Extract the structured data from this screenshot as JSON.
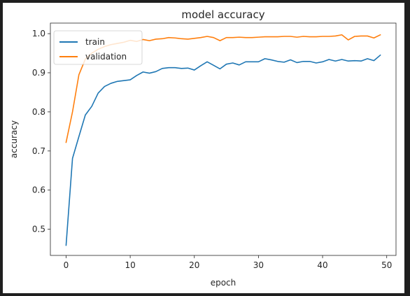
{
  "chart_data": {
    "type": "line",
    "title": "model accuracy",
    "xlabel": "epoch",
    "ylabel": "accuracy",
    "xlim": [
      -2.45,
      51.45
    ],
    "ylim": [
      0.433,
      1.027
    ],
    "xticks": [
      0,
      10,
      20,
      30,
      40,
      50
    ],
    "yticks": [
      0.5,
      0.6,
      0.7,
      0.8,
      0.9,
      1.0
    ],
    "ytick_labels": [
      "0.5",
      "0.6",
      "0.7",
      "0.8",
      "0.9",
      "1.0"
    ],
    "grid": false,
    "legend_position": "top-left",
    "x": [
      0,
      1,
      2,
      3,
      4,
      5,
      6,
      7,
      8,
      9,
      10,
      11,
      12,
      13,
      14,
      15,
      16,
      17,
      18,
      19,
      20,
      21,
      22,
      23,
      24,
      25,
      26,
      27,
      28,
      29,
      30,
      31,
      32,
      33,
      34,
      35,
      36,
      37,
      38,
      39,
      40,
      41,
      42,
      43,
      44,
      45,
      46,
      47,
      48,
      49
    ],
    "series": [
      {
        "name": "train",
        "color": "#1f77b4",
        "values": [
          0.459,
          0.681,
          0.737,
          0.792,
          0.814,
          0.848,
          0.865,
          0.873,
          0.878,
          0.88,
          0.882,
          0.893,
          0.902,
          0.899,
          0.903,
          0.911,
          0.913,
          0.913,
          0.911,
          0.912,
          0.907,
          0.918,
          0.928,
          0.919,
          0.91,
          0.922,
          0.925,
          0.92,
          0.928,
          0.928,
          0.928,
          0.936,
          0.933,
          0.929,
          0.927,
          0.933,
          0.926,
          0.929,
          0.929,
          0.925,
          0.928,
          0.934,
          0.93,
          0.934,
          0.93,
          0.931,
          0.93,
          0.936,
          0.931,
          0.945
        ]
      },
      {
        "name": "validation",
        "color": "#ff7f0e",
        "values": [
          0.722,
          0.8,
          0.895,
          0.935,
          0.95,
          0.96,
          0.967,
          0.972,
          0.975,
          0.978,
          0.983,
          0.98,
          0.985,
          0.982,
          0.986,
          0.987,
          0.99,
          0.989,
          0.987,
          0.986,
          0.988,
          0.99,
          0.993,
          0.99,
          0.982,
          0.99,
          0.99,
          0.991,
          0.99,
          0.99,
          0.991,
          0.992,
          0.992,
          0.992,
          0.993,
          0.993,
          0.991,
          0.993,
          0.992,
          0.992,
          0.993,
          0.993,
          0.994,
          0.997,
          0.984,
          0.993,
          0.994,
          0.994,
          0.989,
          0.997
        ]
      }
    ]
  }
}
